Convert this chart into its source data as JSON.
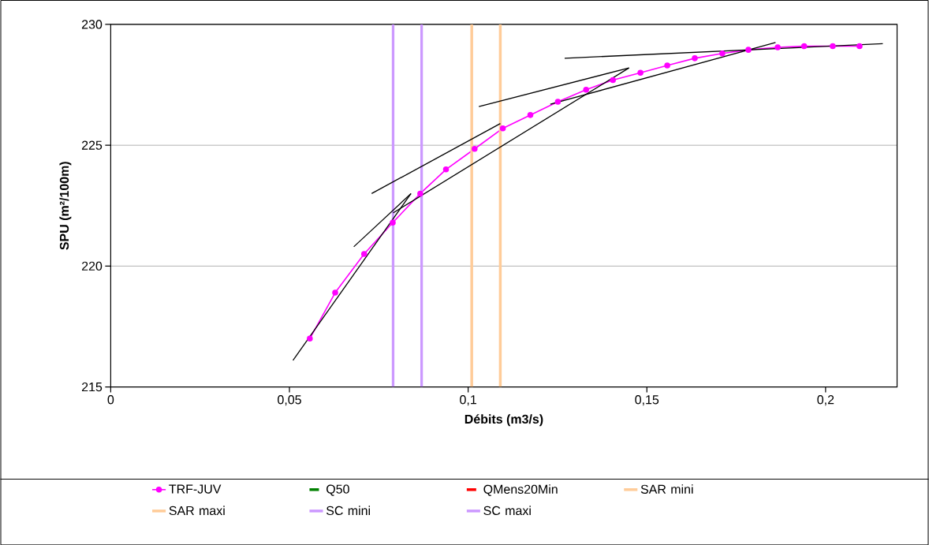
{
  "chart_data": {
    "type": "line",
    "xlabel": "Débits (m3/s)",
    "ylabel": "SPU (m²/100m)",
    "xlim": [
      0,
      0.22
    ],
    "ylim": [
      215,
      230
    ],
    "xticks": [
      0,
      {
        "value": 0.05,
        "label": "0,05"
      },
      {
        "value": 0.1,
        "label": "0,1"
      },
      {
        "value": 0.15,
        "label": "0,15"
      },
      {
        "value": 0.2,
        "label": "0,2"
      }
    ],
    "yticks": [
      215,
      220,
      225,
      230
    ],
    "grid": "y",
    "legend": "bottom",
    "series": [
      {
        "name": "TRF-JUV",
        "color": "#ff00ff",
        "marker": "circle",
        "x": [
          0.0557,
          0.0628,
          0.0709,
          0.0789,
          0.0866,
          0.0938,
          0.1018,
          0.1097,
          0.1174,
          0.1251,
          0.133,
          0.1405,
          0.1482,
          0.1557,
          0.1634,
          0.1711,
          0.1784,
          0.1866,
          0.194,
          0.202,
          0.2095
        ],
        "values": [
          217.0,
          218.9,
          220.5,
          221.8,
          223.0,
          224.0,
          224.85,
          225.7,
          226.25,
          226.8,
          227.3,
          227.7,
          228.0,
          228.3,
          228.6,
          228.8,
          228.95,
          229.05,
          229.1,
          229.1,
          229.1
        ]
      },
      {
        "name": "Q50",
        "color": "#008000",
        "line_style": "dashed"
      },
      {
        "name": "QMens20Min",
        "color": "#ff0000",
        "line_style": "dashed"
      },
      {
        "name": "SAR mini",
        "color": "#ffcc99",
        "x": [
          0.101,
          0.101
        ],
        "values": [
          215,
          230
        ]
      },
      {
        "name": "SAR maxi",
        "color": "#ffcc99",
        "x": [
          0.109,
          0.109
        ],
        "values": [
          215,
          230
        ]
      },
      {
        "name": "SC mini",
        "color": "#cc99ff",
        "x": [
          0.079,
          0.079
        ],
        "values": [
          215,
          230
        ]
      },
      {
        "name": "SC maxi",
        "color": "#cc99ff",
        "x": [
          0.087,
          0.087
        ],
        "values": [
          215,
          230
        ]
      },
      {
        "color": "#000000",
        "x": [
          0.051,
          0.084
        ],
        "values": [
          216.1,
          223.0
        ]
      },
      {
        "color": "#000000",
        "x": [
          0.068,
          0.084
        ],
        "values": [
          220.8,
          223.0
        ]
      },
      {
        "color": "#000000",
        "x": [
          0.073,
          0.109
        ],
        "values": [
          223.0,
          225.9
        ]
      },
      {
        "color": "#000000",
        "x": [
          0.079,
          0.145
        ],
        "values": [
          222.2,
          228.2
        ]
      },
      {
        "color": "#000000",
        "x": [
          0.123,
          0.186
        ],
        "values": [
          226.7,
          229.25
        ]
      },
      {
        "color": "#000000",
        "x": [
          0.103,
          0.145
        ],
        "values": [
          226.6,
          228.2
        ]
      },
      {
        "color": "#000000",
        "x": [
          0.127,
          0.216
        ],
        "values": [
          228.6,
          229.2
        ]
      }
    ]
  }
}
